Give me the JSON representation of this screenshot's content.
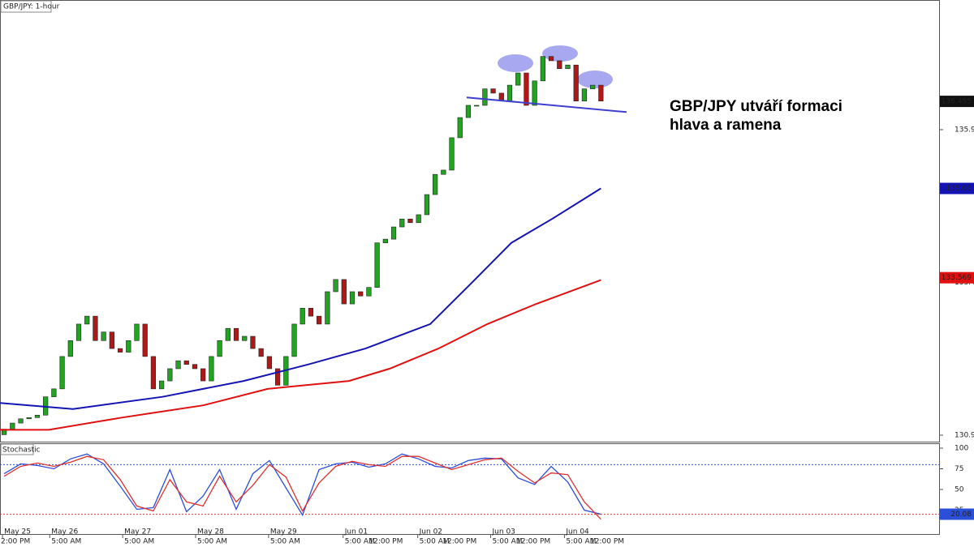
{
  "chart_data": [
    {
      "type": "candlestick",
      "title": "GBP/JPY: 1-hour",
      "annotation": [
        "GBP/JPY utváří formaci",
        "hlava a ramena"
      ],
      "up_color": "#22a322",
      "down_color": "#b01818",
      "open": [
        131.0,
        131.09,
        131.19,
        131.26,
        131.28,
        131.32,
        131.62,
        131.75,
        132.28,
        132.54,
        132.81,
        132.94,
        132.54,
        132.68,
        132.41,
        132.35,
        132.54,
        132.81,
        132.28,
        131.75,
        131.88,
        132.08,
        132.21,
        132.15,
        132.08,
        131.88,
        132.28,
        132.54,
        132.74,
        132.54,
        132.61,
        132.41,
        132.28,
        132.08,
        131.81,
        132.28,
        132.81,
        133.07,
        132.94,
        132.81,
        133.34,
        133.54,
        133.14,
        133.34,
        133.27,
        133.41,
        134.14,
        134.2,
        134.4,
        134.53,
        134.47,
        134.6,
        134.93,
        135.26,
        135.33,
        135.86,
        136.19,
        136.39,
        136.39,
        136.66,
        136.59,
        136.46,
        136.72,
        136.92,
        136.39,
        136.79,
        137.19,
        137.12,
        136.99,
        137.05,
        136.46,
        136.66,
        136.72
      ],
      "close": [
        131.09,
        131.19,
        131.26,
        131.28,
        131.32,
        131.62,
        131.75,
        132.28,
        132.54,
        132.81,
        132.94,
        132.54,
        132.68,
        132.41,
        132.35,
        132.54,
        132.81,
        132.28,
        131.75,
        131.88,
        132.08,
        132.21,
        132.15,
        132.08,
        131.88,
        132.28,
        132.54,
        132.74,
        132.54,
        132.61,
        132.41,
        132.28,
        132.08,
        131.81,
        132.28,
        132.81,
        133.07,
        132.94,
        132.81,
        133.34,
        133.54,
        133.14,
        133.34,
        133.27,
        133.41,
        134.14,
        134.2,
        134.4,
        134.53,
        134.47,
        134.6,
        134.93,
        135.26,
        135.33,
        135.86,
        136.19,
        136.39,
        136.39,
        136.66,
        136.59,
        136.46,
        136.72,
        136.92,
        136.39,
        136.79,
        137.19,
        137.12,
        136.99,
        137.05,
        136.46,
        136.66,
        136.72,
        136.46
      ],
      "lines": [
        {
          "color": "#1414b4",
          "x": [
            -0.5,
            8.3,
            19.1,
            28.9,
            36.7,
            43.6,
            51.4,
            56.3,
            61.2,
            66.1,
            72
          ],
          "values": [
            131.52,
            131.42,
            131.62,
            131.88,
            132.15,
            132.41,
            132.81,
            133.47,
            134.14,
            134.53,
            135.03
          ]
        },
        {
          "color": "#e01010",
          "x": [
            -0.5,
            5.4,
            14.2,
            24,
            31.8,
            41.6,
            46.5,
            52.4,
            58.3,
            64.2,
            72
          ],
          "values": [
            131.08,
            131.08,
            131.28,
            131.48,
            131.75,
            131.88,
            132.08,
            132.41,
            132.81,
            133.14,
            133.53
          ]
        }
      ],
      "trendline": {
        "color": "#3f3fcf",
        "x": [
          55.8,
          75.1
        ],
        "values": [
          136.52,
          136.28
        ]
      },
      "price_tags": [
        {
          "value": 136.455,
          "color": "#111111"
        },
        {
          "value": 135.03,
          "color": "#1414b4"
        },
        {
          "value": 133.569,
          "color": "#e01010"
        }
      ],
      "xlim": [
        -0.5,
        112.9
      ],
      "ylim": [
        130.886,
        138.114
      ],
      "yticks": [
        130.992,
        133.492,
        135.992
      ],
      "xticks": [
        {
          "value": -0.2,
          "label": "May 25"
        },
        {
          "value": 5.5,
          "label": "May 26"
        },
        {
          "value": 14.3,
          "label": "May 27"
        },
        {
          "value": 23.1,
          "label": "May 28"
        },
        {
          "value": 31.9,
          "label": "May 29"
        },
        {
          "value": 40.9,
          "label": "Jun 01"
        },
        {
          "value": 49.9,
          "label": "Jun 02"
        },
        {
          "value": 58.7,
          "label": "Jun 03"
        },
        {
          "value": 67.6,
          "label": "Jun 04"
        }
      ],
      "xticks_time": [
        {
          "value": -0.6,
          "label": "2:00 PM"
        },
        {
          "value": 5.5,
          "label": "5:00 AM"
        },
        {
          "value": 14.3,
          "label": "5:00 AM"
        },
        {
          "value": 23.1,
          "label": "5:00 AM"
        },
        {
          "value": 31.9,
          "label": "5:00 AM"
        },
        {
          "value": 40.9,
          "label": "5:00 AM"
        },
        {
          "value": 43.8,
          "label": "12:00 PM"
        },
        {
          "value": 49.9,
          "label": "5:00 AM"
        },
        {
          "value": 52.7,
          "label": "12:00 PM"
        },
        {
          "value": 58.7,
          "label": "5:00 AM"
        },
        {
          "value": 61.6,
          "label": "12:00 PM"
        },
        {
          "value": 67.6,
          "label": "5:00 AM"
        },
        {
          "value": 70.5,
          "label": "12:00 PM"
        }
      ]
    },
    {
      "type": "line",
      "title": "Stochastic",
      "x": [
        0,
        2,
        4,
        6,
        8,
        10,
        12,
        14,
        16,
        18,
        20,
        22,
        24,
        26,
        28,
        30,
        32,
        34,
        36,
        38,
        40,
        42,
        44,
        46,
        48,
        50,
        52,
        54,
        56,
        58,
        60,
        62,
        64,
        66,
        68,
        70,
        72
      ],
      "series": [
        {
          "color": "#2b4fd8",
          "values": [
            69,
            81,
            79,
            75,
            87,
            93,
            81,
            54,
            26,
            28,
            74,
            23,
            42,
            74,
            26,
            69,
            85,
            52,
            19,
            74,
            81,
            83,
            77,
            81,
            93,
            87,
            78,
            76,
            85,
            88,
            87,
            64,
            56,
            78,
            59,
            25,
            20.08
          ]
        },
        {
          "color": "#e03030",
          "values": [
            66,
            78,
            82,
            78,
            83,
            90,
            86,
            62,
            30,
            24,
            62,
            35,
            30,
            66,
            35,
            55,
            80,
            65,
            24,
            58,
            78,
            84,
            80,
            78,
            90,
            90,
            82,
            74,
            80,
            86,
            88,
            72,
            58,
            70,
            68,
            35,
            14
          ]
        }
      ],
      "levels": [
        {
          "value": 80,
          "color": "#2b4fd8"
        },
        {
          "value": 20,
          "color": "#e03030"
        }
      ],
      "price_tags": [
        {
          "value": 20.08,
          "color": "#2b4fd8"
        }
      ],
      "xlim": [
        -0.5,
        112.9
      ],
      "ylim": [
        -4.9,
        105.9
      ],
      "yticks": [
        25,
        50,
        75,
        100
      ]
    }
  ]
}
